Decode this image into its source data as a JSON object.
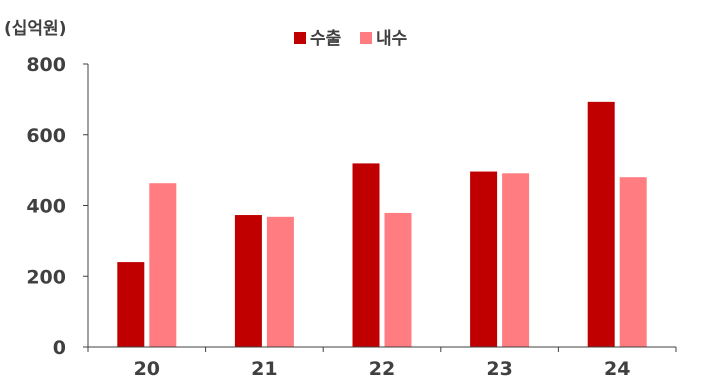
{
  "chart_data": {
    "type": "bar",
    "unit_label": "(십억원)",
    "categories": [
      "20",
      "21",
      "22",
      "23",
      "24"
    ],
    "series": [
      {
        "name": "수출",
        "color": "#c00000",
        "values": [
          240,
          373,
          519,
          496,
          693
        ]
      },
      {
        "name": "내수",
        "color": "#ff7c80",
        "values": [
          463,
          368,
          379,
          491,
          480
        ]
      }
    ],
    "yticks": [
      "0",
      "200",
      "400",
      "600",
      "800"
    ],
    "ylim": [
      0,
      800
    ],
    "legend": "top-center",
    "grid": false
  }
}
